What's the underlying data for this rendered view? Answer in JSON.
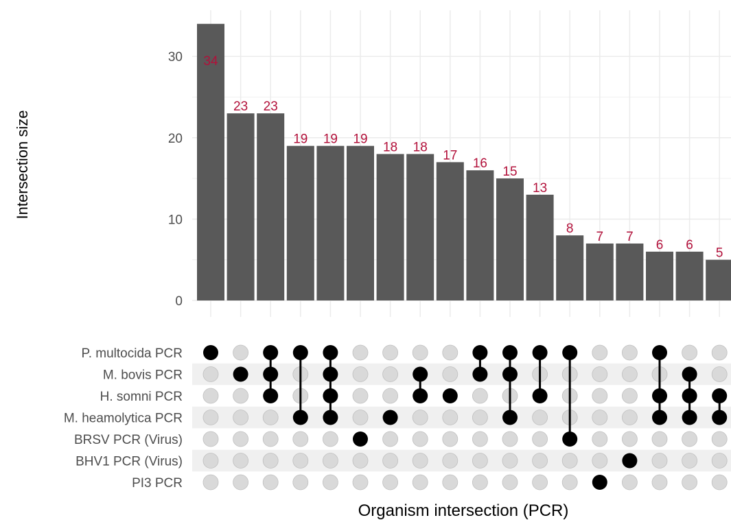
{
  "chart_data": {
    "type": "upset",
    "ylabel": "Intersection size",
    "xlabel": "Organism intersection (PCR)",
    "ylim": [
      0,
      34
    ],
    "yticks": [
      0,
      10,
      20,
      30
    ],
    "grid": true,
    "sets": [
      "P. multocida PCR",
      "M. bovis PCR",
      "H. somni PCR",
      "M. heamolytica PCR",
      "BRSV PCR (Virus)",
      "BHV1 PCR (Virus)",
      "PI3 PCR"
    ],
    "intersections": [
      {
        "sets": [
          "P. multocida PCR"
        ],
        "size": 34
      },
      {
        "sets": [
          "M. bovis PCR"
        ],
        "size": 23
      },
      {
        "sets": [
          "P. multocida PCR",
          "M. bovis PCR",
          "H. somni PCR"
        ],
        "size": 23
      },
      {
        "sets": [
          "P. multocida PCR",
          "M. heamolytica PCR"
        ],
        "size": 19
      },
      {
        "sets": [
          "P. multocida PCR",
          "M. bovis PCR",
          "H. somni PCR",
          "M. heamolytica PCR"
        ],
        "size": 19
      },
      {
        "sets": [
          "BRSV PCR (Virus)"
        ],
        "size": 19
      },
      {
        "sets": [
          "M. heamolytica PCR"
        ],
        "size": 18
      },
      {
        "sets": [
          "M. bovis PCR",
          "H. somni PCR"
        ],
        "size": 18
      },
      {
        "sets": [
          "H. somni PCR"
        ],
        "size": 17
      },
      {
        "sets": [
          "P. multocida PCR",
          "M. bovis PCR"
        ],
        "size": 16
      },
      {
        "sets": [
          "P. multocida PCR",
          "M. bovis PCR",
          "M. heamolytica PCR"
        ],
        "size": 15
      },
      {
        "sets": [
          "P. multocida PCR",
          "H. somni PCR"
        ],
        "size": 13
      },
      {
        "sets": [
          "P. multocida PCR",
          "BRSV PCR (Virus)"
        ],
        "size": 8
      },
      {
        "sets": [
          "PI3 PCR"
        ],
        "size": 7
      },
      {
        "sets": [
          "BHV1 PCR (Virus)"
        ],
        "size": 7
      },
      {
        "sets": [
          "P. multocida PCR",
          "H. somni PCR",
          "M. heamolytica PCR"
        ],
        "size": 6
      },
      {
        "sets": [
          "M. bovis PCR",
          "H. somni PCR",
          "M. heamolytica PCR"
        ],
        "size": 6
      },
      {
        "sets": [
          "H. somni PCR",
          "M. heamolytica PCR"
        ],
        "size": 5
      }
    ],
    "colors": {
      "bar": "#595959",
      "bar_label": "#b2103a",
      "dot_active": "#000000",
      "dot_inactive": "#d9d9d9",
      "stripe": "#f0f0f0",
      "grid": "#ebebeb"
    }
  }
}
